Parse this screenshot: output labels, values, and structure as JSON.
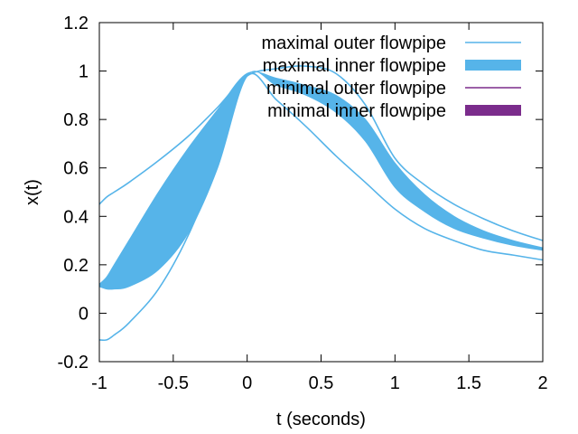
{
  "chart_data": {
    "type": "line",
    "title": "",
    "xlabel": "t (seconds)",
    "ylabel": "x(t)",
    "xlim": [
      -1,
      2
    ],
    "ylim": [
      -0.2,
      1.2
    ],
    "x_ticks": [
      "-1",
      "-0.5",
      "0",
      "0.5",
      "1",
      "1.5",
      "2"
    ],
    "y_ticks": [
      "-0.2",
      "0",
      "0.2",
      "0.4",
      "0.6",
      "0.8",
      "1",
      "1.2"
    ],
    "grid": false,
    "legend_position": "top-right",
    "legend": [
      {
        "label": "maximal outer flowpipe",
        "style": "line",
        "color": "#56b4e9"
      },
      {
        "label": "maximal inner flowpipe",
        "style": "band",
        "color": "#56b4e9"
      },
      {
        "label": "minimal outer flowpipe",
        "style": "line",
        "color": "#7b2c8c"
      },
      {
        "label": "minimal inner flowpipe",
        "style": "band",
        "color": "#7b2c8c"
      }
    ],
    "series": [
      {
        "name": "maximal outer flowpipe",
        "kind": "outer-upper",
        "x": [
          -1,
          -0.95,
          -0.9,
          -0.8,
          -0.6,
          -0.4,
          -0.2,
          0,
          0.2,
          0.4,
          0.6,
          0.8,
          1.0,
          1.2,
          1.4,
          1.6,
          1.8,
          2.0
        ],
        "y": [
          0.45,
          0.48,
          0.5,
          0.54,
          0.63,
          0.73,
          0.85,
          0.98,
          1.01,
          1.02,
          0.99,
          0.86,
          0.64,
          0.53,
          0.45,
          0.39,
          0.34,
          0.3
        ]
      },
      {
        "name": "maximal outer flowpipe",
        "kind": "outer-lower",
        "x": [
          -1,
          -0.95,
          -0.9,
          -0.8,
          -0.6,
          -0.4,
          -0.2,
          0,
          0.2,
          0.4,
          0.6,
          0.8,
          1.0,
          1.2,
          1.4,
          1.6,
          1.8,
          2.0
        ],
        "y": [
          -0.11,
          -0.11,
          -0.09,
          -0.04,
          0.1,
          0.32,
          0.62,
          0.98,
          0.88,
          0.77,
          0.65,
          0.54,
          0.43,
          0.35,
          0.3,
          0.26,
          0.24,
          0.22
        ]
      },
      {
        "name": "maximal inner flowpipe",
        "kind": "inner-band",
        "x": [
          -1,
          -0.95,
          -0.9,
          -0.8,
          -0.6,
          -0.4,
          -0.2,
          0,
          0.2,
          0.4,
          0.6,
          0.8,
          1.0,
          1.2,
          1.4,
          1.6,
          1.8,
          2.0
        ],
        "y_upper": [
          0.12,
          0.15,
          0.2,
          0.3,
          0.5,
          0.68,
          0.84,
          0.99,
          0.97,
          0.94,
          0.9,
          0.8,
          0.62,
          0.49,
          0.4,
          0.34,
          0.3,
          0.27
        ],
        "y_lower": [
          0.11,
          0.1,
          0.1,
          0.11,
          0.18,
          0.33,
          0.6,
          0.98,
          0.94,
          0.9,
          0.83,
          0.71,
          0.52,
          0.42,
          0.35,
          0.31,
          0.28,
          0.26
        ]
      }
    ]
  }
}
